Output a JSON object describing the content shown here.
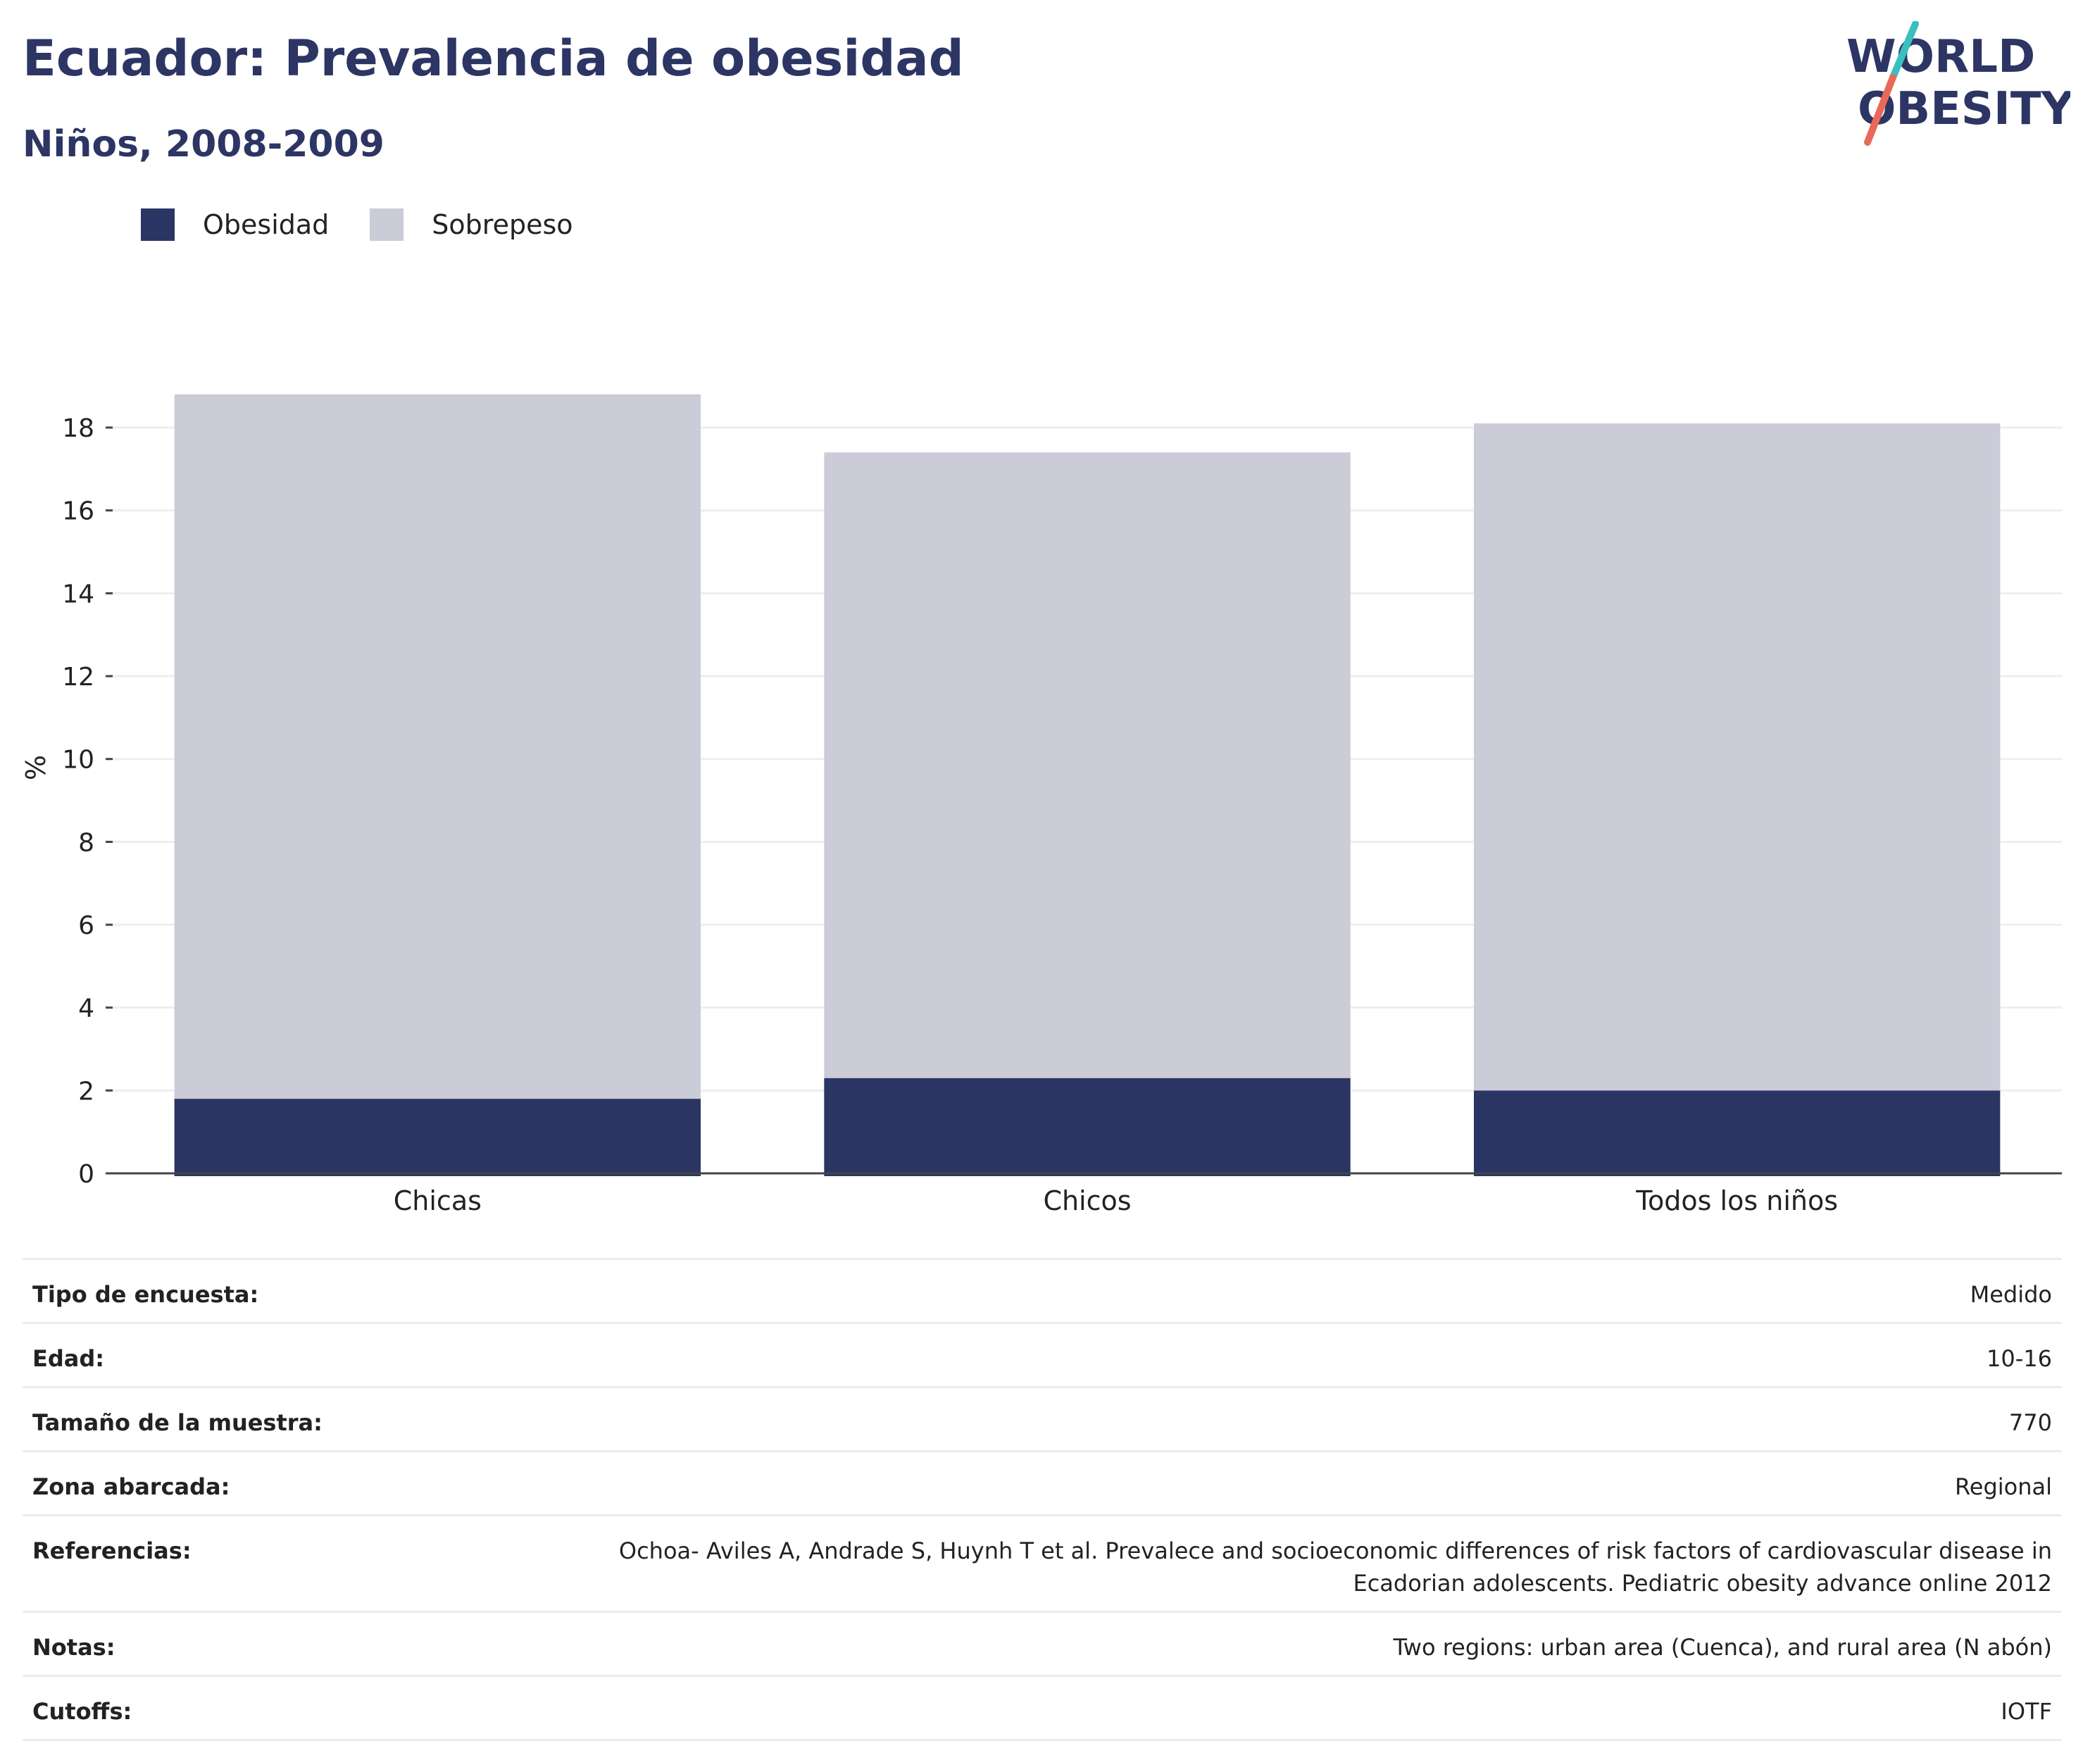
{
  "header": {
    "title": "Ecuador: Prevalencia de obesidad",
    "subtitle": "Niños, 2008-2009"
  },
  "logo": {
    "line1": "WORLD",
    "line2": "OBESITY",
    "colors": {
      "text": "#2c3563",
      "slash_top": "#3bbfbf",
      "slash_bottom": "#e8695a"
    }
  },
  "colors": {
    "obesidad": "#2a3563",
    "sobrepeso": "#cbccd8",
    "grid": "#eeeeee",
    "axis": "#444444"
  },
  "chart_data": {
    "type": "bar",
    "stacked": true,
    "categories": [
      "Chicas",
      "Chicos",
      "Todos los niños"
    ],
    "series": [
      {
        "name": "Obesidad",
        "values": [
          1.8,
          2.3,
          2.0
        ]
      },
      {
        "name": "Sobrepeso",
        "values": [
          17.0,
          15.1,
          16.1
        ]
      }
    ],
    "ylabel": "%",
    "ylim": [
      0,
      18.8
    ],
    "yticks": [
      0,
      2,
      4,
      6,
      8,
      10,
      12,
      14,
      16,
      18
    ],
    "grid": true,
    "legend_position": "top-left"
  },
  "info": [
    {
      "label": "Tipo de encuesta:",
      "value": "Medido"
    },
    {
      "label": "Edad:",
      "value": "10-16"
    },
    {
      "label": "Tamaño de la muestra:",
      "value": "770"
    },
    {
      "label": "Zona abarcada:",
      "value": "Regional"
    },
    {
      "label": "Referencias:",
      "value": "Ochoa- Aviles A, Andrade S, Huynh T et al. Prevalece and socioeconomic differences of risk factors of cardiovascular disease in",
      "value2": "Ecadorian adolescents. Pediatric obesity advance online 2012"
    },
    {
      "label": "Notas:",
      "value": "Two regions: urban area (Cuenca), and rural area (N abón)"
    },
    {
      "label": "Cutoffs:",
      "value": "IOTF"
    }
  ]
}
